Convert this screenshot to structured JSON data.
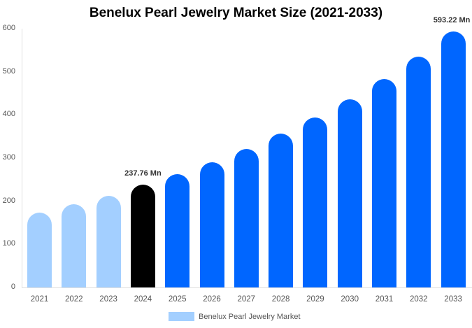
{
  "chart_data": {
    "type": "bar",
    "title": "Benelux Pearl Jewelry Market Size (2021-2033)",
    "xlabel": "",
    "ylabel": "",
    "ylim": [
      0,
      600
    ],
    "yticks": [
      0,
      100,
      200,
      300,
      400,
      500,
      600
    ],
    "grid": false,
    "legend_position": "bottom",
    "categories": [
      "2021",
      "2022",
      "2023",
      "2024",
      "2025",
      "2026",
      "2027",
      "2028",
      "2029",
      "2030",
      "2031",
      "2032",
      "2033"
    ],
    "series": [
      {
        "name": "Benelux Pearl Jewelry Market",
        "values": [
          174,
          193,
          213,
          237.76,
          263,
          290,
          321,
          357,
          394,
          436,
          483,
          535,
          593.22
        ],
        "colors": [
          "#a3cfff",
          "#a3cfff",
          "#a3cfff",
          "#000000",
          "#0066ff",
          "#0066ff",
          "#0066ff",
          "#0066ff",
          "#0066ff",
          "#0066ff",
          "#0066ff",
          "#0066ff",
          "#0066ff"
        ]
      }
    ],
    "annotations": [
      {
        "category": "2024",
        "text": "237.76 Mn"
      },
      {
        "category": "2033",
        "text": "593.22 Mn"
      }
    ]
  },
  "labels": {
    "title": "Benelux Pearl Jewelry Market Size (2021-2033)",
    "legend": "Benelux Pearl Jewelry Market",
    "annotation_2024": "237.76 Mn",
    "annotation_2033": "593.22 Mn"
  }
}
